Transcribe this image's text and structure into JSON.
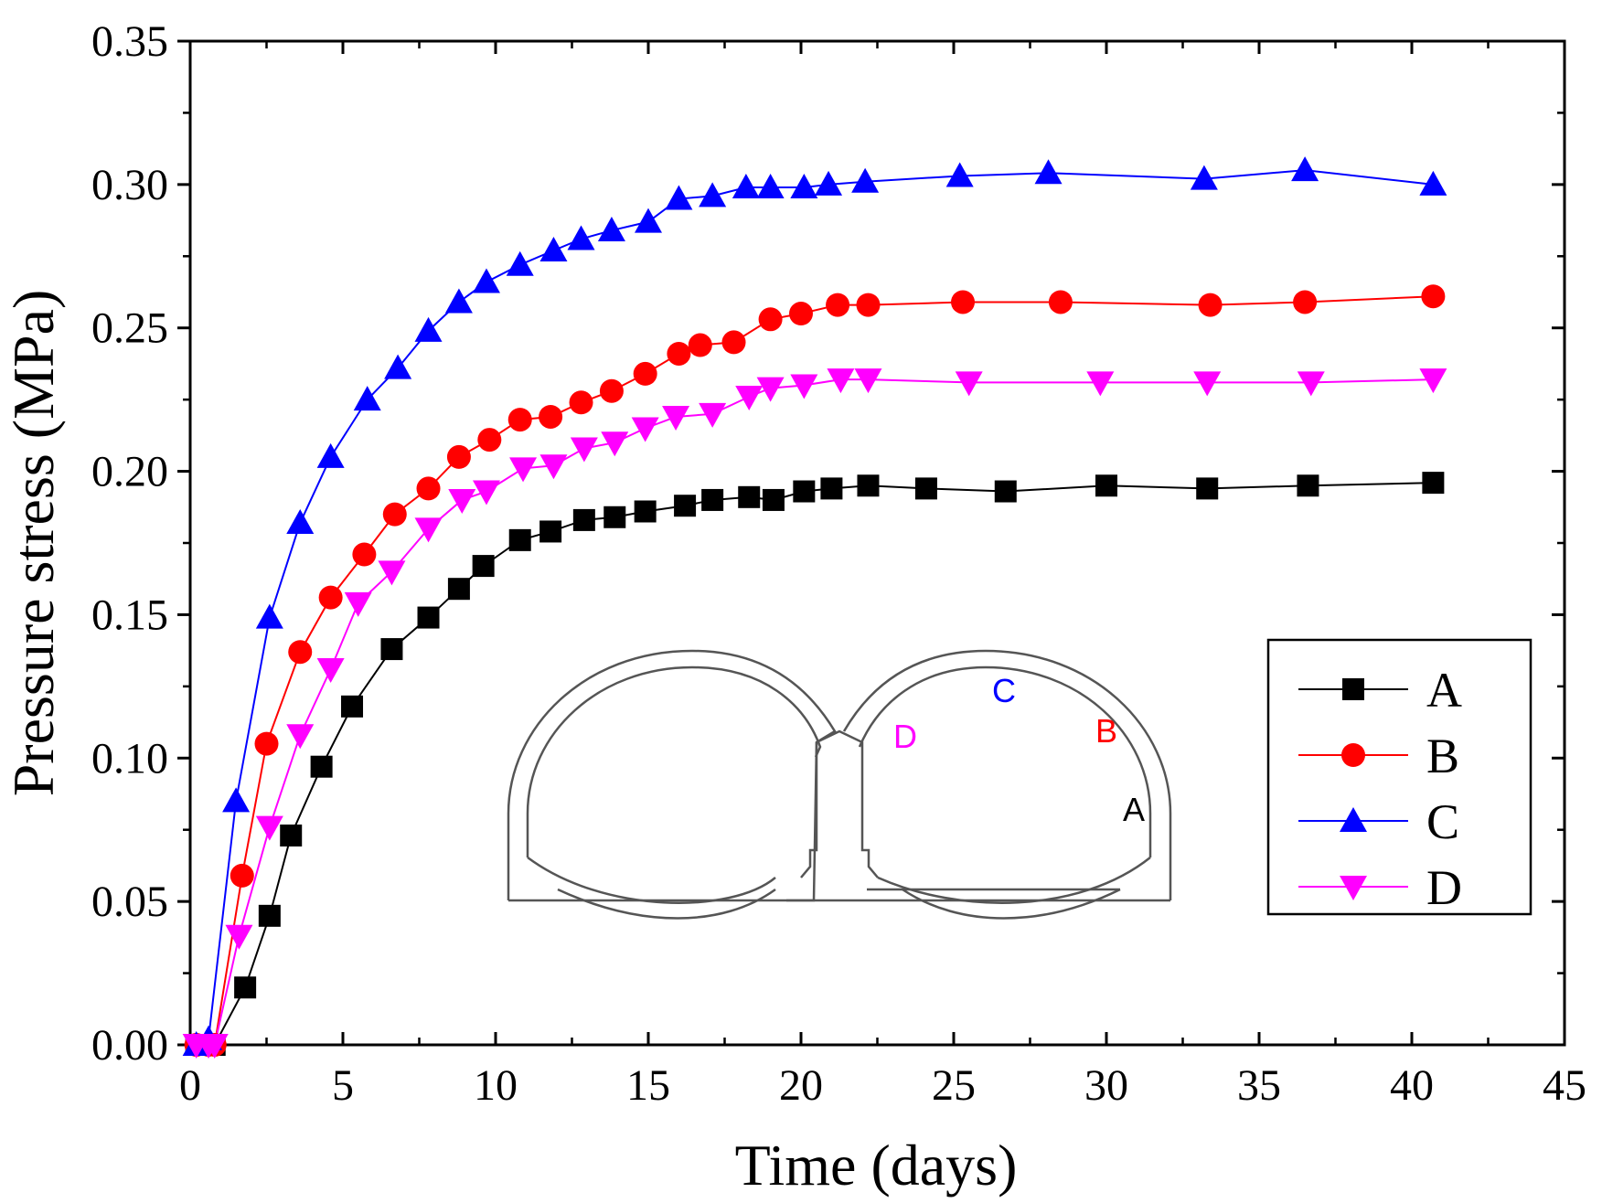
{
  "chart_data": {
    "type": "line",
    "title": "",
    "xlabel": "Time (days)",
    "ylabel": "Pressure stress (MPa)",
    "xlim": [
      0,
      45
    ],
    "ylim": [
      0,
      0.35
    ],
    "xticks": [
      0,
      5,
      10,
      15,
      20,
      25,
      30,
      35,
      40,
      45
    ],
    "xtick_labels": [
      "0",
      "5",
      "10",
      "15",
      "20",
      "25",
      "30",
      "35",
      "40",
      "45"
    ],
    "yticks": [
      0,
      0.05,
      0.1,
      0.15,
      0.2,
      0.25,
      0.3,
      0.35
    ],
    "ytick_labels": [
      "0.00",
      "0.05",
      "0.10",
      "0.15",
      "0.20",
      "0.25",
      "0.30",
      "0.35"
    ],
    "grid": false,
    "legend_position": "bottom-right",
    "series": [
      {
        "name": "A",
        "color": "#000000",
        "marker": "square",
        "x": [
          0.2,
          0.6,
          0.8,
          1.8,
          2.6,
          3.3,
          4.3,
          5.3,
          6.6,
          7.8,
          8.8,
          9.6,
          10.8,
          11.8,
          12.9,
          13.9,
          14.9,
          16.2,
          17.1,
          18.3,
          19.1,
          20.1,
          21.0,
          22.2,
          24.1,
          26.7,
          30.0,
          33.3,
          36.6,
          40.7
        ],
        "y": [
          0,
          0,
          0,
          0.02,
          0.045,
          0.073,
          0.097,
          0.118,
          0.138,
          0.149,
          0.159,
          0.167,
          0.176,
          0.179,
          0.183,
          0.184,
          0.186,
          0.188,
          0.19,
          0.191,
          0.19,
          0.193,
          0.194,
          0.195,
          0.194,
          0.193,
          0.195,
          0.194,
          0.195,
          0.196
        ]
      },
      {
        "name": "B",
        "color": "#ff0000",
        "marker": "circle",
        "x": [
          0.2,
          0.6,
          0.8,
          1.7,
          2.5,
          3.6,
          4.6,
          5.7,
          6.7,
          7.8,
          8.8,
          9.8,
          10.8,
          11.8,
          12.8,
          13.8,
          14.9,
          16.0,
          16.7,
          17.8,
          19.0,
          20.0,
          21.2,
          22.2,
          25.3,
          28.5,
          33.4,
          36.5,
          40.7
        ],
        "y": [
          0,
          0,
          0,
          0.059,
          0.105,
          0.137,
          0.156,
          0.171,
          0.185,
          0.194,
          0.205,
          0.211,
          0.218,
          0.219,
          0.224,
          0.228,
          0.234,
          0.241,
          0.244,
          0.245,
          0.253,
          0.255,
          0.258,
          0.258,
          0.259,
          0.259,
          0.258,
          0.259,
          0.261
        ]
      },
      {
        "name": "C",
        "color": "#0000ff",
        "marker": "triangle-up",
        "x": [
          0.2,
          0.6,
          1.5,
          2.6,
          3.6,
          4.6,
          5.8,
          6.8,
          7.8,
          8.8,
          9.7,
          10.8,
          11.9,
          12.8,
          13.8,
          15.0,
          16.0,
          17.1,
          18.2,
          19.0,
          20.1,
          20.9,
          22.1,
          25.2,
          28.1,
          33.2,
          36.5,
          40.7
        ],
        "y": [
          0,
          0.002,
          0.085,
          0.149,
          0.182,
          0.205,
          0.225,
          0.236,
          0.249,
          0.259,
          0.266,
          0.272,
          0.277,
          0.281,
          0.284,
          0.287,
          0.295,
          0.296,
          0.299,
          0.299,
          0.299,
          0.3,
          0.301,
          0.303,
          0.304,
          0.302,
          0.305,
          0.3
        ]
      },
      {
        "name": "D",
        "color": "#ff00ff",
        "marker": "triangle-down",
        "x": [
          0.2,
          0.6,
          0.8,
          1.6,
          2.6,
          3.6,
          4.6,
          5.5,
          6.6,
          7.8,
          8.9,
          9.7,
          10.9,
          11.9,
          12.9,
          13.9,
          14.9,
          15.9,
          17.1,
          18.3,
          19.0,
          20.1,
          21.3,
          22.2,
          25.5,
          29.8,
          33.3,
          36.7,
          40.7
        ],
        "y": [
          0,
          0,
          0,
          0.038,
          0.076,
          0.108,
          0.131,
          0.154,
          0.165,
          0.18,
          0.19,
          0.193,
          0.201,
          0.202,
          0.208,
          0.21,
          0.215,
          0.219,
          0.22,
          0.226,
          0.229,
          0.23,
          0.232,
          0.232,
          0.231,
          0.231,
          0.231,
          0.231,
          0.232
        ]
      }
    ],
    "inset": {
      "description_labels": [
        {
          "text": "C",
          "color": "#0000ff"
        },
        {
          "text": "B",
          "color": "#ff0000"
        },
        {
          "text": "D",
          "color": "#ff00ff"
        },
        {
          "text": "A",
          "color": "#000000"
        }
      ]
    }
  }
}
